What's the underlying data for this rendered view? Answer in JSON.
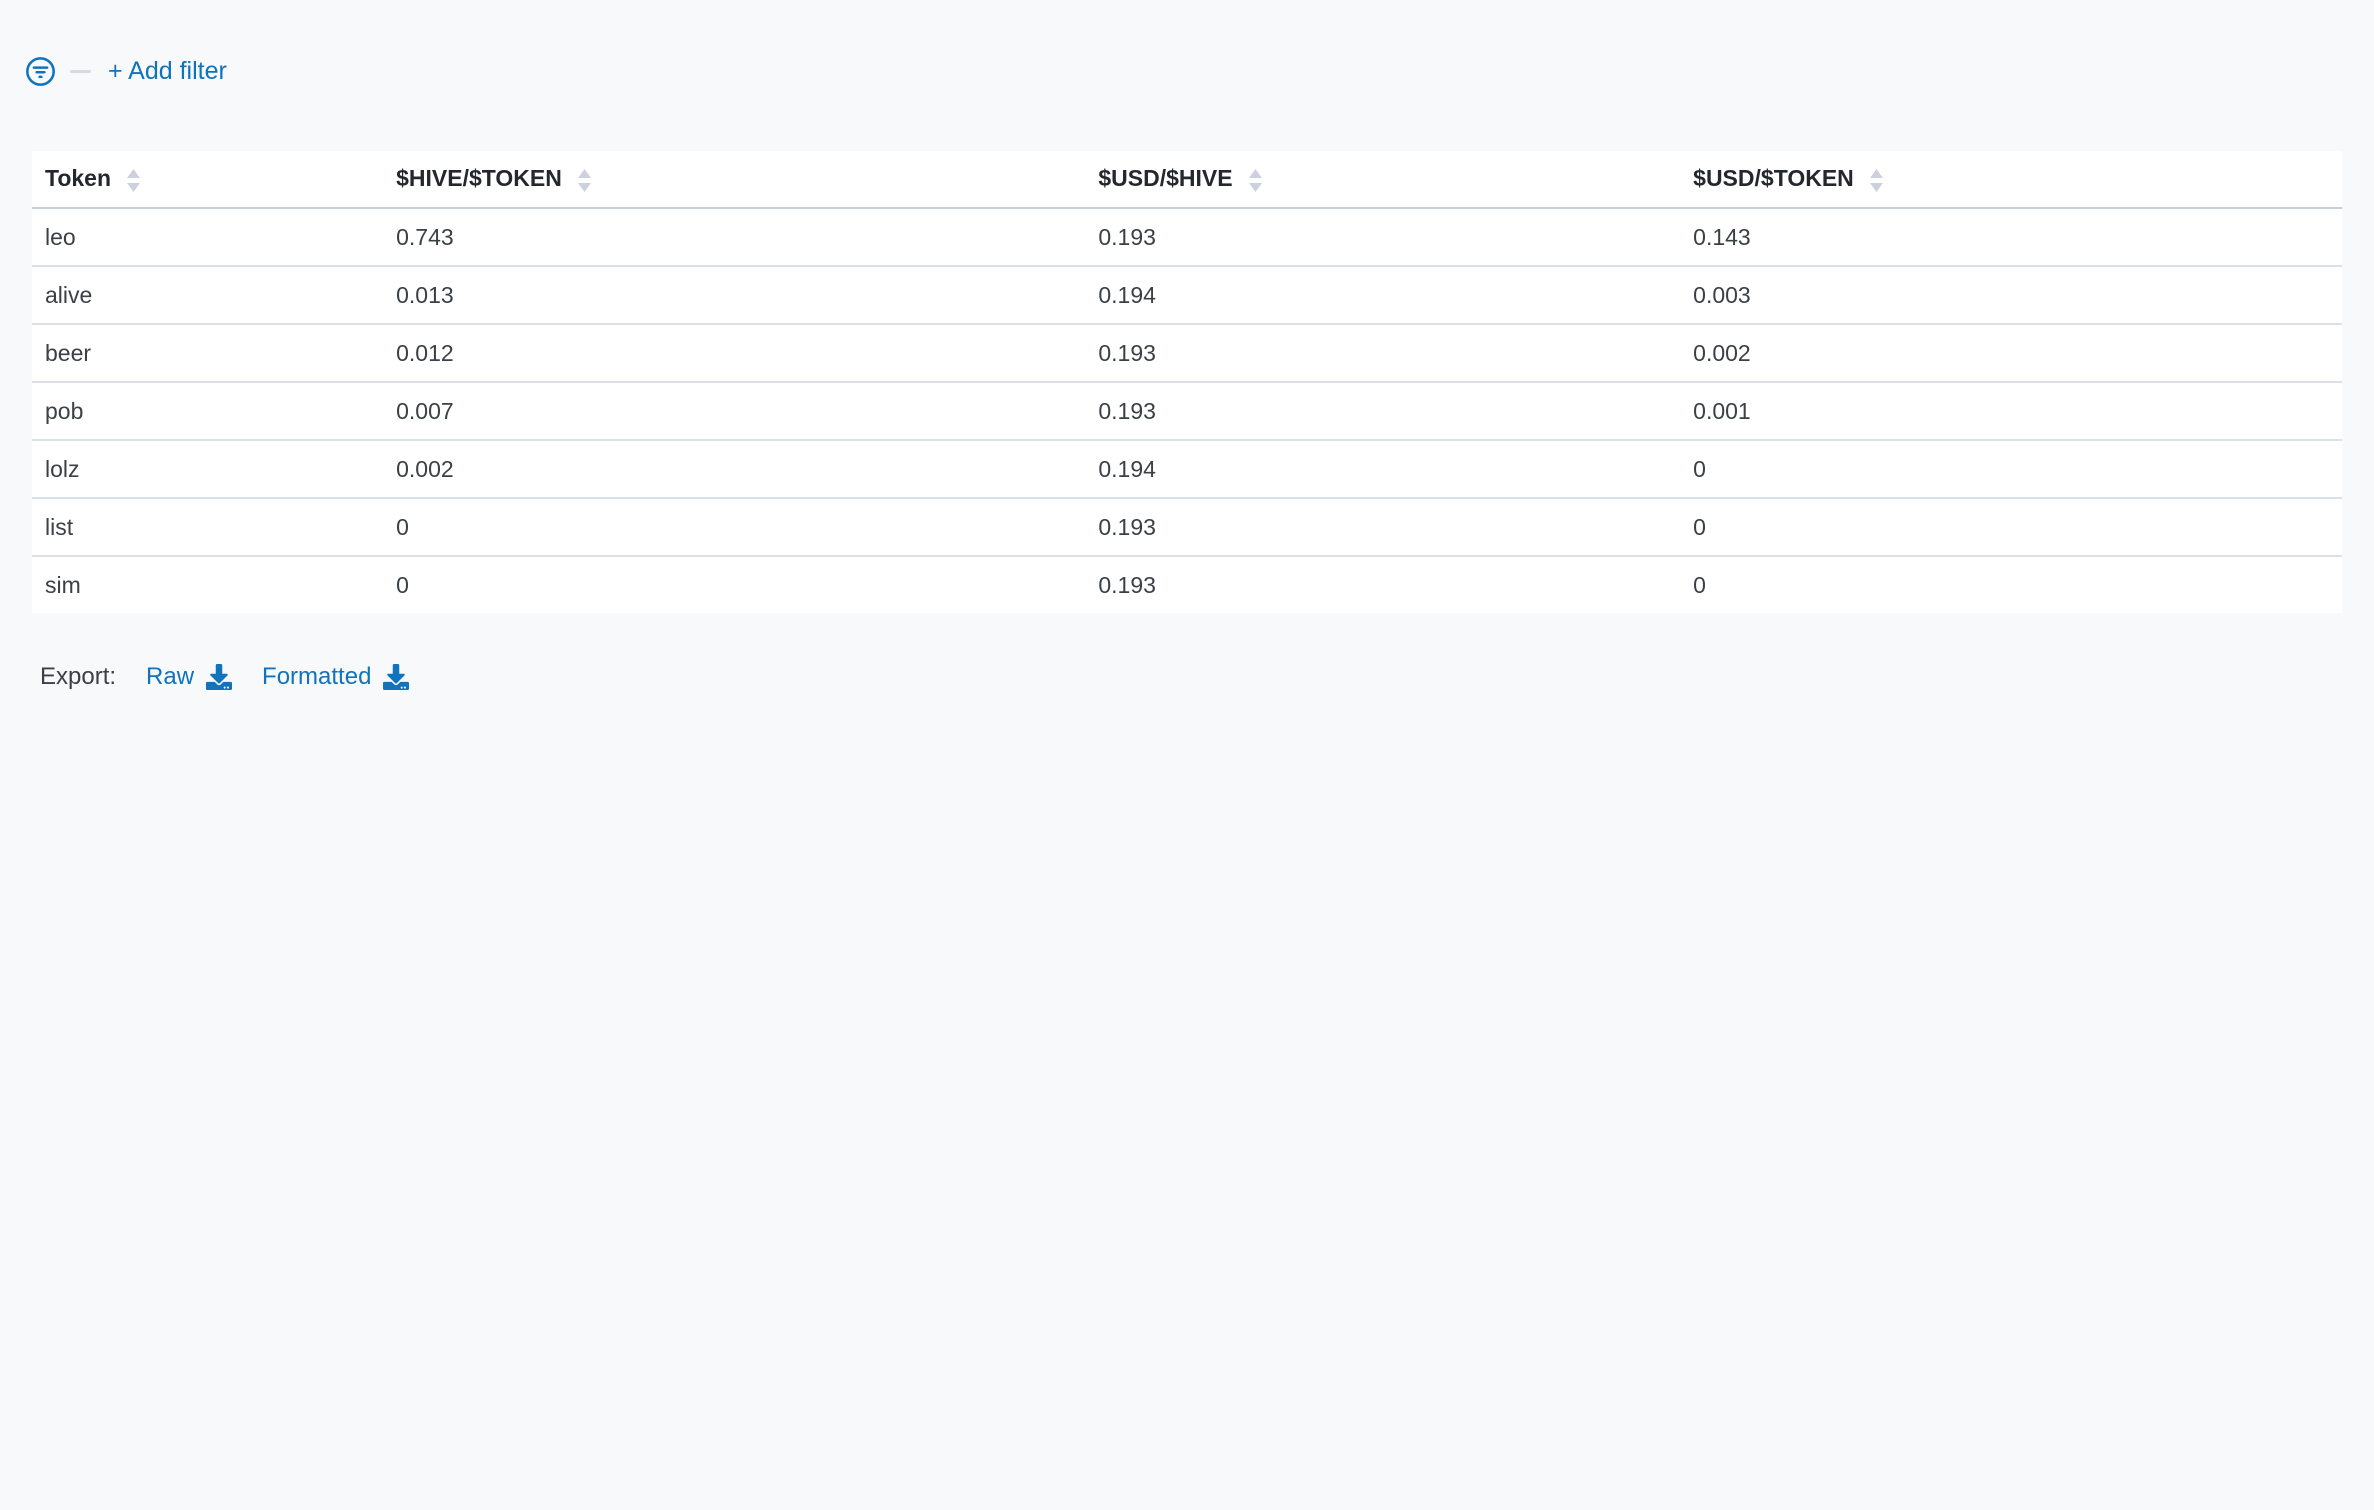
{
  "colors": {
    "accent": "#0f73bd",
    "divider": "#d7dbe1",
    "row_border": "#dbdfe7",
    "header_border": "#c9ced7",
    "page_background": "#f8f9fb"
  },
  "filter_bar": {
    "filter_icon": "filter-funnel-circle-icon",
    "add_filter_label": "+ Add filter"
  },
  "table": {
    "columns": [
      {
        "key": "token",
        "label": "Token",
        "sort_icon": "sort-carets-icon"
      },
      {
        "key": "hive_token",
        "label": "$HIVE/$TOKEN",
        "sort_icon": "sort-carets-icon"
      },
      {
        "key": "usd_hive",
        "label": "$USD/$HIVE",
        "sort_icon": "sort-carets-icon"
      },
      {
        "key": "usd_token",
        "label": "$USD/$TOKEN",
        "sort_icon": "sort-carets-icon"
      }
    ],
    "rows": [
      {
        "token": "leo",
        "hive_token": "0.743",
        "usd_hive": "0.193",
        "usd_token": "0.143"
      },
      {
        "token": "alive",
        "hive_token": "0.013",
        "usd_hive": "0.194",
        "usd_token": "0.003"
      },
      {
        "token": "beer",
        "hive_token": "0.012",
        "usd_hive": "0.193",
        "usd_token": "0.002"
      },
      {
        "token": "pob",
        "hive_token": "0.007",
        "usd_hive": "0.193",
        "usd_token": "0.001"
      },
      {
        "token": "lolz",
        "hive_token": "0.002",
        "usd_hive": "0.194",
        "usd_token": "0"
      },
      {
        "token": "list",
        "hive_token": "0",
        "usd_hive": "0.193",
        "usd_token": "0"
      },
      {
        "token": "sim",
        "hive_token": "0",
        "usd_hive": "0.193",
        "usd_token": "0"
      }
    ]
  },
  "export": {
    "label": "Export:",
    "raw_label": "Raw",
    "formatted_label": "Formatted",
    "download_icon": "download-icon"
  }
}
